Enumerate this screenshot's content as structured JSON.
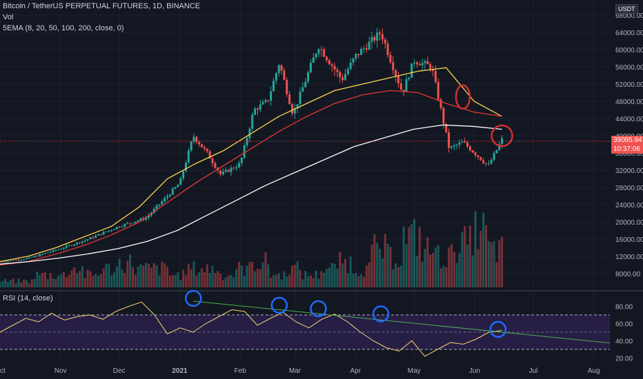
{
  "header": {
    "title": "Bitcoin / TetherUS PERPETUAL FUTURES, 1D, BINANCE",
    "vol_label": "Vol",
    "ema_label": "5EMA (8, 20, 50, 100, 200, close, 0)",
    "rsi_label": "RSI (14, close)",
    "currency": "USDT"
  },
  "price_tags": {
    "last": "39085.94",
    "countdown": "10:37:06"
  },
  "colors": {
    "background": "#131722",
    "up": "#26a69a",
    "down": "#ef5350",
    "ema8": "#0aa8a8",
    "ema20": "#2e7d32",
    "ema50": "#ffd54f",
    "ema100": "#e53935",
    "ema200": "#ffffff",
    "rsi_line": "#f5d76e",
    "rsi_band": "#2a1f4a",
    "trendline": "#4caf50",
    "annotation_blue": "#1e6bff",
    "annotation_red": "#d32f2f"
  },
  "chart_data": {
    "type": "line",
    "title": "Bitcoin / TetherUS PERPETUAL FUTURES, 1D, BINANCE",
    "x_tick_labels": [
      "Oct",
      "Nov",
      "Dec",
      "2021",
      "Feb",
      "Mar",
      "Apr",
      "May",
      "Jun",
      "Jul",
      "Aug"
    ],
    "y_tick_labels": [
      "68000.00",
      "64000.00",
      "60000.00",
      "56000.00",
      "52000.00",
      "48000.00",
      "44000.00",
      "40000.00",
      "36000.00",
      "32000.00",
      "28000.00",
      "24000.00",
      "20000.00",
      "16000.00",
      "12000.00",
      "8000.00"
    ],
    "rsi_tick_labels": [
      "80.00",
      "60.00",
      "40.00",
      "20.00"
    ],
    "ylim": [
      8000,
      68000
    ],
    "rsi_levels": [
      70,
      50,
      30
    ],
    "price_series": {
      "name": "Bitcoin / TetherUS PERPETUAL FUTURES",
      "dates": [
        "2020-10-01",
        "2020-10-15",
        "2020-11-01",
        "2020-11-15",
        "2020-12-01",
        "2020-12-15",
        "2021-01-01",
        "2021-01-08",
        "2021-01-15",
        "2021-01-22",
        "2021-02-01",
        "2021-02-08",
        "2021-02-15",
        "2021-02-21",
        "2021-02-28",
        "2021-03-13",
        "2021-03-25",
        "2021-04-01",
        "2021-04-14",
        "2021-04-25",
        "2021-05-01",
        "2021-05-10",
        "2021-05-19",
        "2021-05-26",
        "2021-06-01",
        "2021-06-08",
        "2021-06-15"
      ],
      "values": [
        10800,
        11500,
        13800,
        16000,
        19000,
        21000,
        29000,
        40000,
        36000,
        31000,
        33500,
        46000,
        48000,
        57000,
        45000,
        61000,
        53000,
        58500,
        64000,
        50000,
        57500,
        56000,
        37000,
        38500,
        36000,
        33000,
        39086
      ]
    },
    "series": [
      {
        "name": "EMA 50",
        "values": [
          10800,
          12000,
          14000,
          16500,
          19000,
          23500,
          30000,
          33500,
          36500,
          40500,
          44500,
          47500,
          50500,
          52000,
          53500,
          55000,
          55800,
          48000,
          44500
        ]
      },
      {
        "name": "EMA 100",
        "values": [
          10000,
          10800,
          12500,
          14500,
          17000,
          20000,
          24500,
          29000,
          33000,
          37000,
          41000,
          44500,
          47500,
          49500,
          50500,
          50000,
          47500,
          45500,
          44500
        ]
      },
      {
        "name": "EMA 200",
        "values": [
          10200,
          10800,
          11600,
          12600,
          13800,
          15500,
          18000,
          21500,
          25000,
          28500,
          31500,
          34500,
          37500,
          39500,
          41500,
          42500,
          42200,
          41500
        ]
      }
    ],
    "rsi_series": {
      "name": "RSI (14, close)",
      "values": [
        50,
        58,
        66,
        62,
        72,
        64,
        68,
        70,
        65,
        74,
        80,
        85,
        70,
        48,
        55,
        50,
        60,
        68,
        76,
        74,
        58,
        66,
        73,
        62,
        55,
        65,
        71,
        62,
        50,
        40,
        32,
        28,
        40,
        22,
        30,
        38,
        36,
        42,
        50,
        52
      ]
    },
    "volume": [
      1,
      1,
      2,
      2,
      3,
      2,
      3,
      4,
      3,
      3,
      2,
      3,
      3,
      2,
      3,
      4,
      2,
      3,
      2,
      3,
      4,
      3,
      6,
      5,
      8,
      6,
      5,
      7,
      9,
      6
    ],
    "annotations": [
      {
        "shape": "circle",
        "color": "blue",
        "panel": "RSI",
        "date": "2021-01-08"
      },
      {
        "shape": "circle",
        "color": "blue",
        "panel": "RSI",
        "date": "2021-02-21"
      },
      {
        "shape": "circle",
        "color": "blue",
        "panel": "RSI",
        "date": "2021-03-13"
      },
      {
        "shape": "circle",
        "color": "blue",
        "panel": "RSI",
        "date": "2021-04-14"
      },
      {
        "shape": "circle",
        "color": "blue",
        "panel": "RSI",
        "date": "2021-06-13"
      },
      {
        "shape": "circle",
        "color": "red",
        "panel": "price",
        "date": "2021-05-26"
      },
      {
        "shape": "circle",
        "color": "red",
        "panel": "price",
        "date": "2021-06-15"
      }
    ],
    "grid": true
  }
}
